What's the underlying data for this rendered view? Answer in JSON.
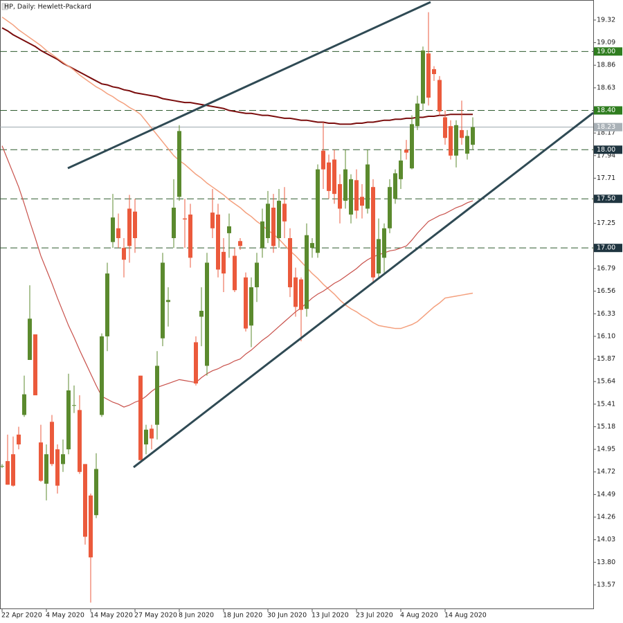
{
  "chart_data": {
    "type": "candlestick",
    "title": "HP, Daily:  Hewlett-Packard",
    "categories": [
      "22 Apr 2020",
      null,
      null,
      null,
      null,
      null,
      null,
      null,
      "4 May 2020",
      null,
      null,
      null,
      null,
      null,
      null,
      null,
      "14 May 2020",
      null,
      null,
      null,
      null,
      null,
      null,
      null,
      "27 May 2020",
      null,
      null,
      null,
      null,
      null,
      null,
      null,
      "8 Jun 2020",
      null,
      null,
      null,
      null,
      null,
      null,
      null,
      "18 Jun 2020",
      null,
      null,
      null,
      null,
      null,
      null,
      null,
      "30 Jun 2020",
      null,
      null,
      null,
      null,
      null,
      null,
      null,
      "13 Jul 2020",
      null,
      null,
      null,
      null,
      null,
      null,
      null,
      "23 Jul 2020",
      null,
      null,
      null,
      null,
      null,
      null,
      null,
      "4 Aug 2020",
      null,
      null,
      null,
      null,
      null,
      null,
      null,
      "14 Aug 2020",
      null,
      null,
      null,
      null,
      null
    ],
    "open": [
      14.78,
      14.83,
      14.9,
      15.1,
      15.3,
      15.86,
      16.12,
      15.02,
      14.6,
      15.23,
      14.95,
      14.8,
      14.95,
      15.4,
      15.35,
      14.8,
      14.48,
      14.28,
      15.3,
      16.1,
      17.06,
      17.2,
      17.0,
      17.4,
      17.37,
      15.7,
      15.0,
      15.16,
      15.2,
      16.08,
      16.45,
      17.1,
      17.52,
      17.3,
      17.34,
      16.04,
      16.3,
      15.8,
      17.36,
      17.34,
      16.96,
      17.15,
      16.92,
      17.07,
      16.7,
      16.21,
      16.6,
      17.0,
      17.1,
      17.41,
      17.1,
      17.45,
      17.1,
      16.7,
      16.68,
      16.38,
      17.0,
      16.95,
      17.99,
      17.87,
      17.9,
      17.65,
      17.48,
      17.34,
      17.69,
      17.52,
      17.4,
      17.62,
      16.74,
      16.9,
      17.2,
      17.5,
      17.7,
      18.0,
      17.81,
      18.24,
      18.47,
      18.98,
      18.82,
      18.71,
      18.33,
      18.24,
      17.94,
      18.2,
      17.96,
      18.05
    ],
    "high": [
      14.8,
      15.1,
      15.08,
      15.18,
      15.7,
      16.62,
      16.12,
      15.2,
      15.0,
      15.3,
      15.0,
      15.05,
      15.72,
      15.6,
      15.5,
      14.8,
      14.5,
      14.91,
      16.13,
      16.85,
      17.55,
      17.35,
      17.1,
      17.54,
      17.5,
      15.7,
      15.2,
      15.2,
      15.95,
      16.95,
      16.6,
      17.7,
      18.25,
      17.5,
      17.45,
      16.1,
      16.6,
      16.95,
      17.6,
      17.45,
      17.1,
      17.35,
      17.0,
      17.1,
      16.75,
      16.7,
      16.95,
      17.4,
      17.58,
      17.55,
      17.6,
      17.62,
      17.2,
      16.8,
      16.7,
      17.25,
      17.1,
      17.85,
      18.28,
      17.95,
      18.0,
      17.75,
      18.0,
      17.75,
      17.8,
      17.65,
      18.0,
      17.7,
      17.3,
      17.25,
      17.7,
      17.8,
      18.0,
      18.1,
      18.35,
      18.55,
      19.05,
      19.4,
      18.85,
      18.75,
      18.4,
      18.3,
      18.3,
      18.5,
      18.2,
      18.33
    ],
    "low": [
      14.76,
      14.59,
      14.57,
      14.95,
      15.28,
      15.86,
      15.5,
      14.62,
      14.43,
      14.78,
      14.5,
      14.72,
      14.9,
      15.32,
      14.7,
      13.98,
      13.39,
      14.25,
      15.28,
      15.95,
      17.0,
      17.0,
      16.7,
      16.85,
      16.95,
      14.84,
      14.9,
      14.95,
      15.05,
      16.0,
      16.2,
      17.0,
      17.48,
      17.0,
      16.8,
      15.6,
      16.0,
      15.7,
      17.1,
      16.7,
      16.55,
      16.9,
      16.55,
      16.98,
      16.15,
      15.99,
      16.45,
      16.9,
      17.05,
      16.95,
      17.0,
      17.1,
      16.5,
      16.3,
      16.05,
      16.3,
      16.9,
      16.9,
      17.6,
      17.5,
      17.45,
      17.25,
      17.4,
      17.25,
      17.3,
      17.3,
      17.35,
      16.65,
      16.7,
      16.75,
      17.15,
      17.45,
      17.6,
      17.9,
      17.8,
      18.2,
      18.4,
      18.45,
      18.7,
      18.35,
      18.05,
      17.9,
      17.82,
      18.05,
      17.9,
      18.0
    ],
    "close": [
      14.78,
      14.59,
      14.58,
      15.0,
      15.51,
      16.28,
      15.5,
      14.63,
      14.9,
      14.8,
      14.58,
      14.9,
      15.55,
      15.4,
      14.72,
      14.06,
      13.85,
      14.75,
      16.1,
      16.74,
      17.31,
      17.1,
      16.88,
      17.02,
      17.1,
      14.84,
      15.15,
      15.06,
      15.8,
      16.85,
      16.47,
      17.41,
      18.19,
      17.29,
      16.9,
      15.62,
      16.36,
      16.85,
      17.2,
      16.78,
      16.74,
      17.22,
      16.57,
      17.02,
      16.18,
      16.6,
      16.85,
      17.27,
      17.45,
      17.02,
      17.48,
      17.27,
      16.6,
      16.4,
      16.37,
      17.13,
      17.05,
      17.8,
      17.8,
      17.58,
      17.55,
      17.4,
      17.8,
      17.7,
      17.38,
      17.43,
      17.85,
      16.7,
      17.09,
      17.2,
      17.62,
      17.76,
      17.89,
      17.97,
      18.26,
      18.47,
      19.01,
      18.53,
      18.77,
      18.39,
      18.12,
      17.94,
      18.25,
      18.12,
      18.14,
      18.23
    ],
    "up_color": "#5b8a2e",
    "down_color": "#eb5a3c",
    "lines": [
      {
        "color": "#7a0c0c",
        "width": 2,
        "values": [
          19.24,
          19.21,
          19.17,
          19.14,
          19.11,
          19.08,
          19.05,
          19.01,
          18.98,
          18.95,
          18.92,
          18.88,
          18.85,
          18.82,
          18.79,
          18.76,
          18.73,
          18.7,
          18.67,
          18.66,
          18.64,
          18.63,
          18.61,
          18.6,
          18.58,
          18.57,
          18.56,
          18.55,
          18.54,
          18.52,
          18.51,
          18.5,
          18.49,
          18.48,
          18.48,
          18.47,
          18.46,
          18.45,
          18.44,
          18.43,
          18.42,
          18.4,
          18.39,
          18.38,
          18.37,
          18.37,
          18.36,
          18.35,
          18.35,
          18.34,
          18.33,
          18.32,
          18.32,
          18.31,
          18.3,
          18.3,
          18.29,
          18.28,
          18.28,
          18.27,
          18.27,
          18.26,
          18.26,
          18.26,
          18.27,
          18.27,
          18.28,
          18.28,
          18.29,
          18.3,
          18.3,
          18.31,
          18.31,
          18.32,
          18.32,
          18.33,
          18.33,
          18.34,
          18.34,
          18.35,
          18.35,
          18.36,
          18.36,
          18.36,
          18.36,
          18.36
        ]
      },
      {
        "color": "#f4a07e",
        "width": 1.5,
        "values": [
          19.35,
          19.31,
          19.27,
          19.22,
          19.18,
          19.14,
          19.1,
          19.06,
          19.01,
          18.97,
          18.93,
          18.89,
          18.85,
          18.81,
          18.76,
          18.72,
          18.68,
          18.64,
          18.61,
          18.57,
          18.54,
          18.5,
          18.47,
          18.43,
          18.4,
          18.36,
          18.29,
          18.22,
          18.15,
          18.08,
          18.01,
          17.94,
          17.89,
          17.85,
          17.8,
          17.75,
          17.71,
          17.66,
          17.62,
          17.58,
          17.54,
          17.49,
          17.45,
          17.41,
          17.36,
          17.32,
          17.27,
          17.23,
          17.18,
          17.14,
          17.09,
          17.03,
          16.97,
          16.92,
          16.86,
          16.8,
          16.74,
          16.69,
          16.63,
          16.58,
          16.53,
          16.47,
          16.42,
          16.38,
          16.35,
          16.31,
          16.28,
          16.24,
          16.21,
          16.2,
          16.19,
          16.18,
          16.18,
          16.2,
          16.22,
          16.25,
          16.3,
          16.35,
          16.4,
          16.44,
          16.49,
          16.5,
          16.51,
          16.52,
          16.53,
          16.54
        ]
      },
      {
        "color": "#c8504a",
        "width": 1.2,
        "values": [
          18.04,
          17.9,
          17.76,
          17.62,
          17.45,
          17.27,
          17.1,
          16.92,
          16.78,
          16.64,
          16.49,
          16.35,
          16.21,
          16.09,
          15.96,
          15.84,
          15.72,
          15.6,
          15.49,
          15.46,
          15.43,
          15.41,
          15.38,
          15.4,
          15.43,
          15.45,
          15.49,
          15.54,
          15.58,
          15.6,
          15.62,
          15.64,
          15.66,
          15.65,
          15.64,
          15.63,
          15.68,
          15.72,
          15.75,
          15.77,
          15.8,
          15.82,
          15.85,
          15.87,
          15.92,
          15.96,
          16.01,
          16.06,
          16.1,
          16.15,
          16.2,
          16.25,
          16.3,
          16.35,
          16.39,
          16.44,
          16.49,
          16.53,
          16.56,
          16.6,
          16.64,
          16.67,
          16.71,
          16.75,
          16.79,
          16.84,
          16.88,
          16.91,
          16.93,
          16.95,
          16.97,
          16.98,
          17.0,
          17.02,
          17.08,
          17.15,
          17.21,
          17.27,
          17.3,
          17.33,
          17.35,
          17.38,
          17.41,
          17.43,
          17.46,
          17.48
        ]
      }
    ],
    "ylim": [
      13.323,
      19.524
    ],
    "yticks": [
      19.32,
      19.09,
      18.86,
      18.63,
      18.17,
      17.94,
      17.71,
      17.25,
      16.79,
      16.56,
      16.33,
      {
        "value": 16.1,
        "label": "16.10"
      },
      15.87,
      15.64,
      15.41,
      15.18,
      14.95,
      14.72,
      14.49,
      14.26,
      14.03,
      {
        "value": 13.8,
        "label": "13.80"
      },
      13.57
    ],
    "levels": [
      {
        "value": 19,
        "label": "19.00",
        "color": "#2f7d1f"
      },
      {
        "value": 18.4,
        "label": "18.40",
        "color": "#2f7d1f"
      },
      {
        "value": 18,
        "label": "18.00",
        "color": "#1f3540"
      },
      {
        "value": 17.5,
        "label": "17.50",
        "color": "#1f3540"
      },
      {
        "value": 17,
        "label": "17.00",
        "color": "#1f3540"
      }
    ],
    "last_price": 18.23
  }
}
